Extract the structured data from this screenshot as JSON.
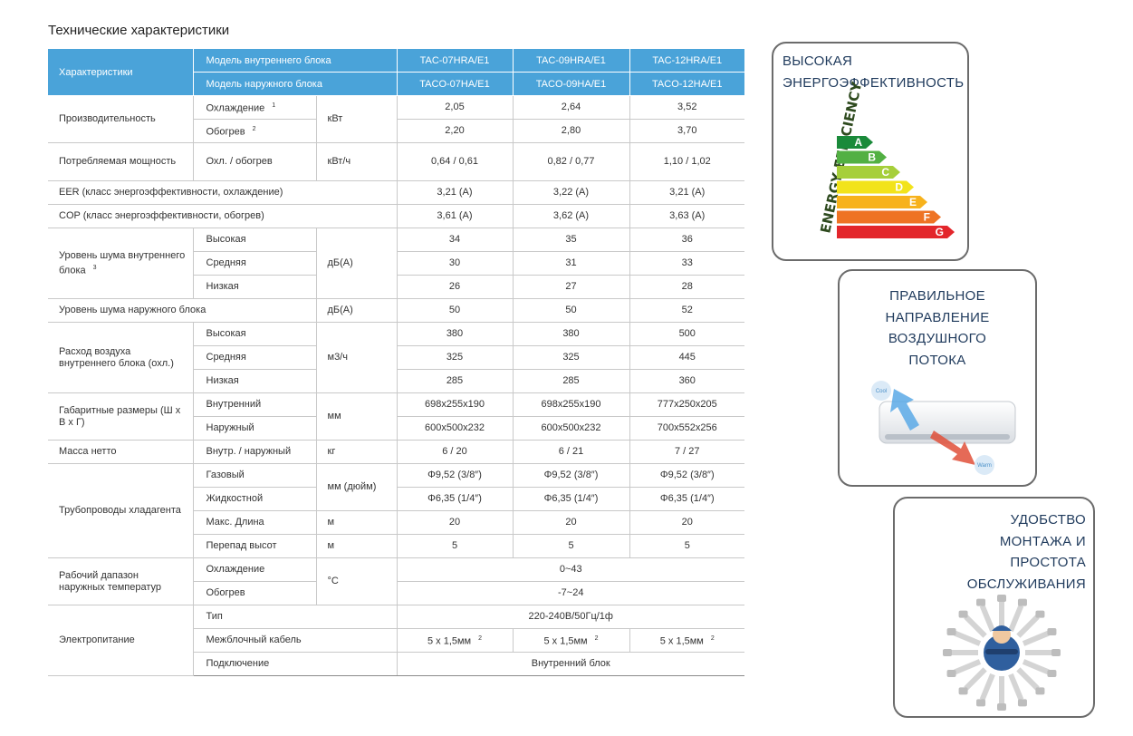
{
  "title": "Технические характеристики",
  "table": {
    "header": {
      "characteristics": "Характеристики",
      "indoor_model_label": "Модель внутреннего блока",
      "outdoor_model_label": "Модель наружного блока",
      "indoor_models": [
        "TAC-07HRA/E1",
        "TAC-09HRA/E1",
        "TAC-12HRA/E1"
      ],
      "outdoor_models": [
        "TACO-07HA/E1",
        "TACO-09HA/E1",
        "TACO-12HA/E1"
      ]
    },
    "groups": [
      {
        "name": "Производительность",
        "unit": "кВт",
        "rows": [
          {
            "label": "Охлаждение",
            "note": "1",
            "values": [
              "2,05",
              "2,64",
              "3,52"
            ]
          },
          {
            "label": "Обогрев",
            "note": "2",
            "values": [
              "2,20",
              "2,80",
              "3,70"
            ]
          }
        ]
      },
      {
        "name": "Потребляемая мощность",
        "unit": "кВт/ч",
        "rows": [
          {
            "label": "Охл. / обогрев",
            "values": [
              "0,64 / 0,61",
              "0,82 / 0,77",
              "1,10 / 1,02"
            ]
          }
        ]
      },
      {
        "name": "EER (класс энергоэффективности, охлаждение)",
        "values": [
          "3,21 (A)",
          "3,22 (A)",
          "3,21 (A)"
        ]
      },
      {
        "name": "COP (класс энергоэффективности, обогрев)",
        "values": [
          "3,61 (A)",
          "3,62 (A)",
          "3,63 (A)"
        ]
      },
      {
        "name": "Уровень шума внутреннего блока",
        "note": "3",
        "unit": "дБ(А)",
        "rows": [
          {
            "label": "Высокая",
            "values": [
              34,
              35,
              36
            ]
          },
          {
            "label": "Средняя",
            "values": [
              30,
              31,
              33
            ]
          },
          {
            "label": "Низкая",
            "values": [
              26,
              27,
              28
            ]
          }
        ]
      },
      {
        "name": "Уровень шума наружного блока",
        "unit": "дБ(А)",
        "values": [
          50,
          50,
          52
        ]
      },
      {
        "name": "Расход воздуха внутреннего блока (охл.)",
        "unit": "м3/ч",
        "rows": [
          {
            "label": "Высокая",
            "values": [
              380,
              380,
              500
            ]
          },
          {
            "label": "Средняя",
            "values": [
              325,
              325,
              445
            ]
          },
          {
            "label": "Низкая",
            "values": [
              285,
              285,
              360
            ]
          }
        ]
      },
      {
        "name": "Габаритные размеры (Ш х В х Г)",
        "unit": "мм",
        "rows": [
          {
            "label": "Внутренний",
            "values": [
              "698x255x190",
              "698x255x190",
              "777x250x205"
            ]
          },
          {
            "label": "Наружный",
            "values": [
              "600x500x232",
              "600x500x232",
              "700x552x256"
            ]
          }
        ]
      },
      {
        "name": "Масса нетто",
        "unit": "кг",
        "rows": [
          {
            "label": "Внутр. / наружный",
            "values": [
              "6 / 20",
              "6 / 21",
              "7 / 27"
            ]
          }
        ]
      },
      {
        "name": "Трубопроводы хладагента",
        "unit": "мм (дюйм)",
        "rows": [
          {
            "label": "Газовый",
            "values": [
              "Φ9,52 (3/8″)",
              "Φ9,52 (3/8″)",
              "Φ9,52 (3/8″)"
            ]
          },
          {
            "label": "Жидкостной",
            "values": [
              "Φ6,35 (1/4″)",
              "Φ6,35 (1/4″)",
              "Φ6,35 (1/4″)"
            ]
          },
          {
            "label": "Макс. Длина",
            "unit": "м",
            "values": [
              20,
              20,
              20
            ]
          },
          {
            "label": "Перепад высот",
            "unit": "м",
            "values": [
              5,
              5,
              5
            ]
          }
        ]
      },
      {
        "name": "Рабочий дапазон наружных температур",
        "unit": "°C",
        "rows": [
          {
            "label": "Охлаждение",
            "value": "0~43"
          },
          {
            "label": "Обогрев",
            "value": "-7~24"
          }
        ]
      },
      {
        "name": "Электропитание",
        "rows": [
          {
            "label": "Тип",
            "value": "220-240В/50Гц/1ф"
          },
          {
            "label": "Межблочный кабель",
            "values": [
              "5 x 1,5мм",
              "5 x 1,5мм",
              "5 x 1,5мм"
            ],
            "value_notes": [
              "2",
              "2",
              "2"
            ]
          },
          {
            "label": "Подключение",
            "value": "Внутренний блок"
          }
        ]
      }
    ]
  },
  "panels": [
    {
      "title_lines": [
        "ВЫСОКАЯ",
        "ЭНЕРГОЭФФЕКТИВНОСТЬ"
      ],
      "side_text": "ENERGY EFFICIENCY",
      "classes": [
        "A",
        "B",
        "C",
        "D",
        "E",
        "F",
        "G"
      ]
    },
    {
      "title_lines": [
        "ПРАВИЛЬНОЕ",
        "НАПРАВЛЕНИЕ",
        "ВОЗДУШНОГО",
        "ПОТОКА"
      ],
      "cool": "Cool",
      "warm": "Warm"
    },
    {
      "title_lines": [
        "УДОБСТВО",
        "МОНТАЖА И",
        "ПРОСТОТА",
        "ОБСЛУЖИВАНИЯ"
      ]
    }
  ]
}
